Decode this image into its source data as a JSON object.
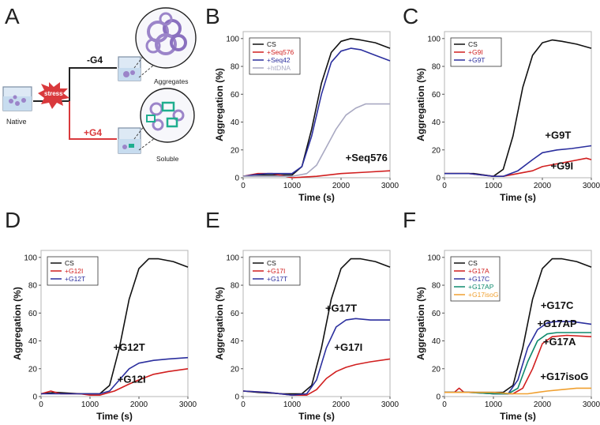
{
  "figure": {
    "panel_a": {
      "letter": "A",
      "stress_label": "stress",
      "native_label": "Native",
      "minus_g4_label": "-G4",
      "plus_g4_label": "+G4",
      "aggregates_label": "Aggregates",
      "soluble_label": "Soluble"
    }
  },
  "colors": {
    "CS": "#111111",
    "red": "#d11f1f",
    "blue": "#2b2f9e",
    "gray": "#a9a9c2",
    "green": "#0e8a6d",
    "orange": "#f0a030",
    "stress": "#d9393c",
    "arrow_red": "#d9393c",
    "protein": "#9b84c9"
  },
  "chart_data": [
    {
      "panel": "B",
      "type": "line",
      "xlabel": "Time (s)",
      "ylabel": "Aggregation (%)",
      "xlim": [
        0,
        3000
      ],
      "ylim": [
        0,
        105
      ],
      "xticks": [
        0,
        1000,
        2000,
        3000
      ],
      "yticks": [
        0,
        20,
        40,
        60,
        80,
        100
      ],
      "legend": "top-left",
      "annotations": [
        {
          "text": "+Seq576",
          "x": 2520,
          "y": 12
        }
      ],
      "series": [
        {
          "name": "CS",
          "color": "#111111",
          "x": [
            0,
            200,
            500,
            1000,
            1200,
            1400,
            1600,
            1800,
            2000,
            2200,
            2400,
            2700,
            3000
          ],
          "y": [
            1,
            2,
            2,
            2,
            8,
            35,
            68,
            90,
            98,
            100,
            99,
            97,
            93
          ]
        },
        {
          "name": "+Seq576",
          "color": "#d11f1f",
          "x": [
            0,
            300,
            600,
            1000,
            1500,
            2000,
            2500,
            3000
          ],
          "y": [
            1,
            3,
            3,
            0,
            1,
            3,
            4,
            5
          ]
        },
        {
          "name": "+Seq42",
          "color": "#2b2f9e",
          "x": [
            0,
            200,
            500,
            1000,
            1200,
            1400,
            1600,
            1800,
            2000,
            2200,
            2400,
            2700,
            3000
          ],
          "y": [
            1,
            2,
            3,
            3,
            8,
            30,
            60,
            83,
            91,
            93,
            92,
            88,
            84
          ]
        },
        {
          "name": "+htDNA",
          "color": "#a9a9c2",
          "x": [
            0,
            500,
            1000,
            1300,
            1500,
            1700,
            1900,
            2100,
            2300,
            2500,
            2700,
            3000
          ],
          "y": [
            1,
            1,
            1,
            3,
            9,
            22,
            35,
            45,
            50,
            53,
            53,
            53
          ]
        }
      ]
    },
    {
      "panel": "C",
      "type": "line",
      "xlabel": "Time (s)",
      "ylabel": "Aggregation (%)",
      "xlim": [
        0,
        3000
      ],
      "ylim": [
        0,
        105
      ],
      "xticks": [
        0,
        1000,
        2000,
        3000
      ],
      "yticks": [
        0,
        20,
        40,
        60,
        80,
        100
      ],
      "legend": "top-left",
      "annotations": [
        {
          "text": "+G9T",
          "x": 2320,
          "y": 28
        },
        {
          "text": "+G9I",
          "x": 2400,
          "y": 6
        }
      ],
      "series": [
        {
          "name": "CS",
          "color": "#111111",
          "x": [
            0,
            300,
            600,
            1000,
            1200,
            1400,
            1600,
            1800,
            2000,
            2200,
            2400,
            2700,
            3000
          ],
          "y": [
            3,
            3,
            3,
            1,
            6,
            30,
            65,
            88,
            97,
            99,
            98,
            96,
            93
          ]
        },
        {
          "name": "+G9I",
          "color": "#d11f1f",
          "x": [
            0,
            500,
            1000,
            1200,
            1500,
            1800,
            2000,
            2300,
            2600,
            2900,
            3000
          ],
          "y": [
            3,
            3,
            1,
            1,
            3,
            5,
            8,
            10,
            12,
            14,
            13
          ]
        },
        {
          "name": "+G9T",
          "color": "#2b2f9e",
          "x": [
            0,
            500,
            1000,
            1200,
            1500,
            1800,
            2000,
            2300,
            2600,
            3000
          ],
          "y": [
            3,
            3,
            1,
            1,
            5,
            13,
            18,
            20,
            21,
            23
          ]
        }
      ]
    },
    {
      "panel": "D",
      "type": "line",
      "xlabel": "Time (s)",
      "ylabel": "Aggregation (%)",
      "xlim": [
        0,
        3000
      ],
      "ylim": [
        0,
        105
      ],
      "xticks": [
        0,
        1000,
        2000,
        3000
      ],
      "yticks": [
        0,
        20,
        40,
        60,
        80,
        100
      ],
      "legend": "top-left",
      "annotations": [
        {
          "text": "+G12T",
          "x": 1800,
          "y": 33
        },
        {
          "text": "+G12I",
          "x": 1850,
          "y": 10
        }
      ],
      "series": [
        {
          "name": "CS",
          "color": "#111111",
          "x": [
            0,
            300,
            800,
            1200,
            1400,
            1600,
            1800,
            2000,
            2200,
            2400,
            2700,
            3000
          ],
          "y": [
            2,
            3,
            2,
            2,
            8,
            35,
            70,
            92,
            99,
            99,
            97,
            93
          ]
        },
        {
          "name": "+G12I",
          "color": "#d11f1f",
          "x": [
            0,
            200,
            400,
            600,
            800,
            1000,
            1200,
            1500,
            1800,
            2000,
            2300,
            2600,
            3000
          ],
          "y": [
            2,
            4,
            2,
            2,
            2,
            1,
            1,
            4,
            9,
            12,
            16,
            18,
            20
          ]
        },
        {
          "name": "+G12T",
          "color": "#2b2f9e",
          "x": [
            0,
            300,
            800,
            1200,
            1400,
            1600,
            1800,
            2000,
            2300,
            2600,
            3000
          ],
          "y": [
            2,
            2,
            2,
            2,
            4,
            12,
            20,
            24,
            26,
            27,
            28
          ]
        }
      ]
    },
    {
      "panel": "E",
      "type": "line",
      "xlabel": "Time (s)",
      "ylabel": "Aggregation (%)",
      "xlim": [
        0,
        3000
      ],
      "ylim": [
        0,
        105
      ],
      "xticks": [
        0,
        1000,
        2000,
        3000
      ],
      "yticks": [
        0,
        20,
        40,
        60,
        80,
        100
      ],
      "legend": "top-left",
      "annotations": [
        {
          "text": "+G17T",
          "x": 2000,
          "y": 61
        },
        {
          "text": "+G17I",
          "x": 2150,
          "y": 33
        }
      ],
      "series": [
        {
          "name": "CS",
          "color": "#111111",
          "x": [
            0,
            300,
            800,
            1200,
            1400,
            1600,
            1800,
            2000,
            2200,
            2400,
            2700,
            3000
          ],
          "y": [
            4,
            3,
            2,
            2,
            8,
            35,
            70,
            92,
            99,
            99,
            97,
            93
          ]
        },
        {
          "name": "+G17I",
          "color": "#d11f1f",
          "x": [
            0,
            500,
            1000,
            1300,
            1500,
            1700,
            1900,
            2100,
            2300,
            2600,
            3000
          ],
          "y": [
            4,
            3,
            1,
            1,
            5,
            13,
            18,
            21,
            23,
            25,
            27
          ]
        },
        {
          "name": "+G17T",
          "color": "#2b2f9e",
          "x": [
            0,
            500,
            1000,
            1300,
            1500,
            1700,
            1900,
            2100,
            2300,
            2600,
            3000
          ],
          "y": [
            4,
            3,
            1,
            2,
            12,
            35,
            50,
            55,
            56,
            55,
            55
          ]
        }
      ]
    },
    {
      "panel": "F",
      "type": "line",
      "xlabel": "Time (s)",
      "ylabel": "Aggregation (%)",
      "xlim": [
        0,
        3000
      ],
      "ylim": [
        0,
        105
      ],
      "xticks": [
        0,
        1000,
        2000,
        3000
      ],
      "yticks": [
        0,
        20,
        40,
        60,
        80,
        100
      ],
      "legend": "top-left",
      "annotations": [
        {
          "text": "+G17C",
          "x": 2300,
          "y": 63
        },
        {
          "text": "+G17AP",
          "x": 2300,
          "y": 50
        },
        {
          "text": "+G17A",
          "x": 2350,
          "y": 37
        },
        {
          "text": "+G17isoG",
          "x": 2450,
          "y": 12
        }
      ],
      "series": [
        {
          "name": "CS",
          "color": "#111111",
          "x": [
            0,
            300,
            800,
            1200,
            1400,
            1600,
            1800,
            2000,
            2200,
            2400,
            2700,
            3000
          ],
          "y": [
            3,
            3,
            3,
            3,
            8,
            35,
            70,
            92,
            99,
            99,
            97,
            93
          ]
        },
        {
          "name": "+G17A",
          "color": "#d11f1f",
          "x": [
            0,
            200,
            300,
            400,
            600,
            1000,
            1400,
            1600,
            1800,
            2000,
            2200,
            2500,
            3000
          ],
          "y": [
            3,
            3,
            6,
            3,
            3,
            2,
            2,
            6,
            20,
            38,
            43,
            44,
            43
          ]
        },
        {
          "name": "+G17C",
          "color": "#2b2f9e",
          "x": [
            0,
            500,
            1000,
            1300,
            1500,
            1700,
            1900,
            2100,
            2300,
            2600,
            3000
          ],
          "y": [
            3,
            3,
            2,
            2,
            12,
            35,
            48,
            53,
            54,
            54,
            52
          ]
        },
        {
          "name": "+G17AP",
          "color": "#0e8a6d",
          "x": [
            0,
            500,
            1000,
            1300,
            1500,
            1700,
            1900,
            2100,
            2300,
            2600,
            3000
          ],
          "y": [
            3,
            3,
            2,
            2,
            6,
            25,
            40,
            45,
            46,
            46,
            46
          ]
        },
        {
          "name": "+G17isoG",
          "color": "#f0a030",
          "x": [
            0,
            500,
            1000,
            1400,
            1700,
            1900,
            2100,
            2400,
            2700,
            3000
          ],
          "y": [
            3,
            3,
            3,
            2,
            2,
            3,
            4,
            5,
            6,
            6
          ]
        }
      ]
    }
  ]
}
